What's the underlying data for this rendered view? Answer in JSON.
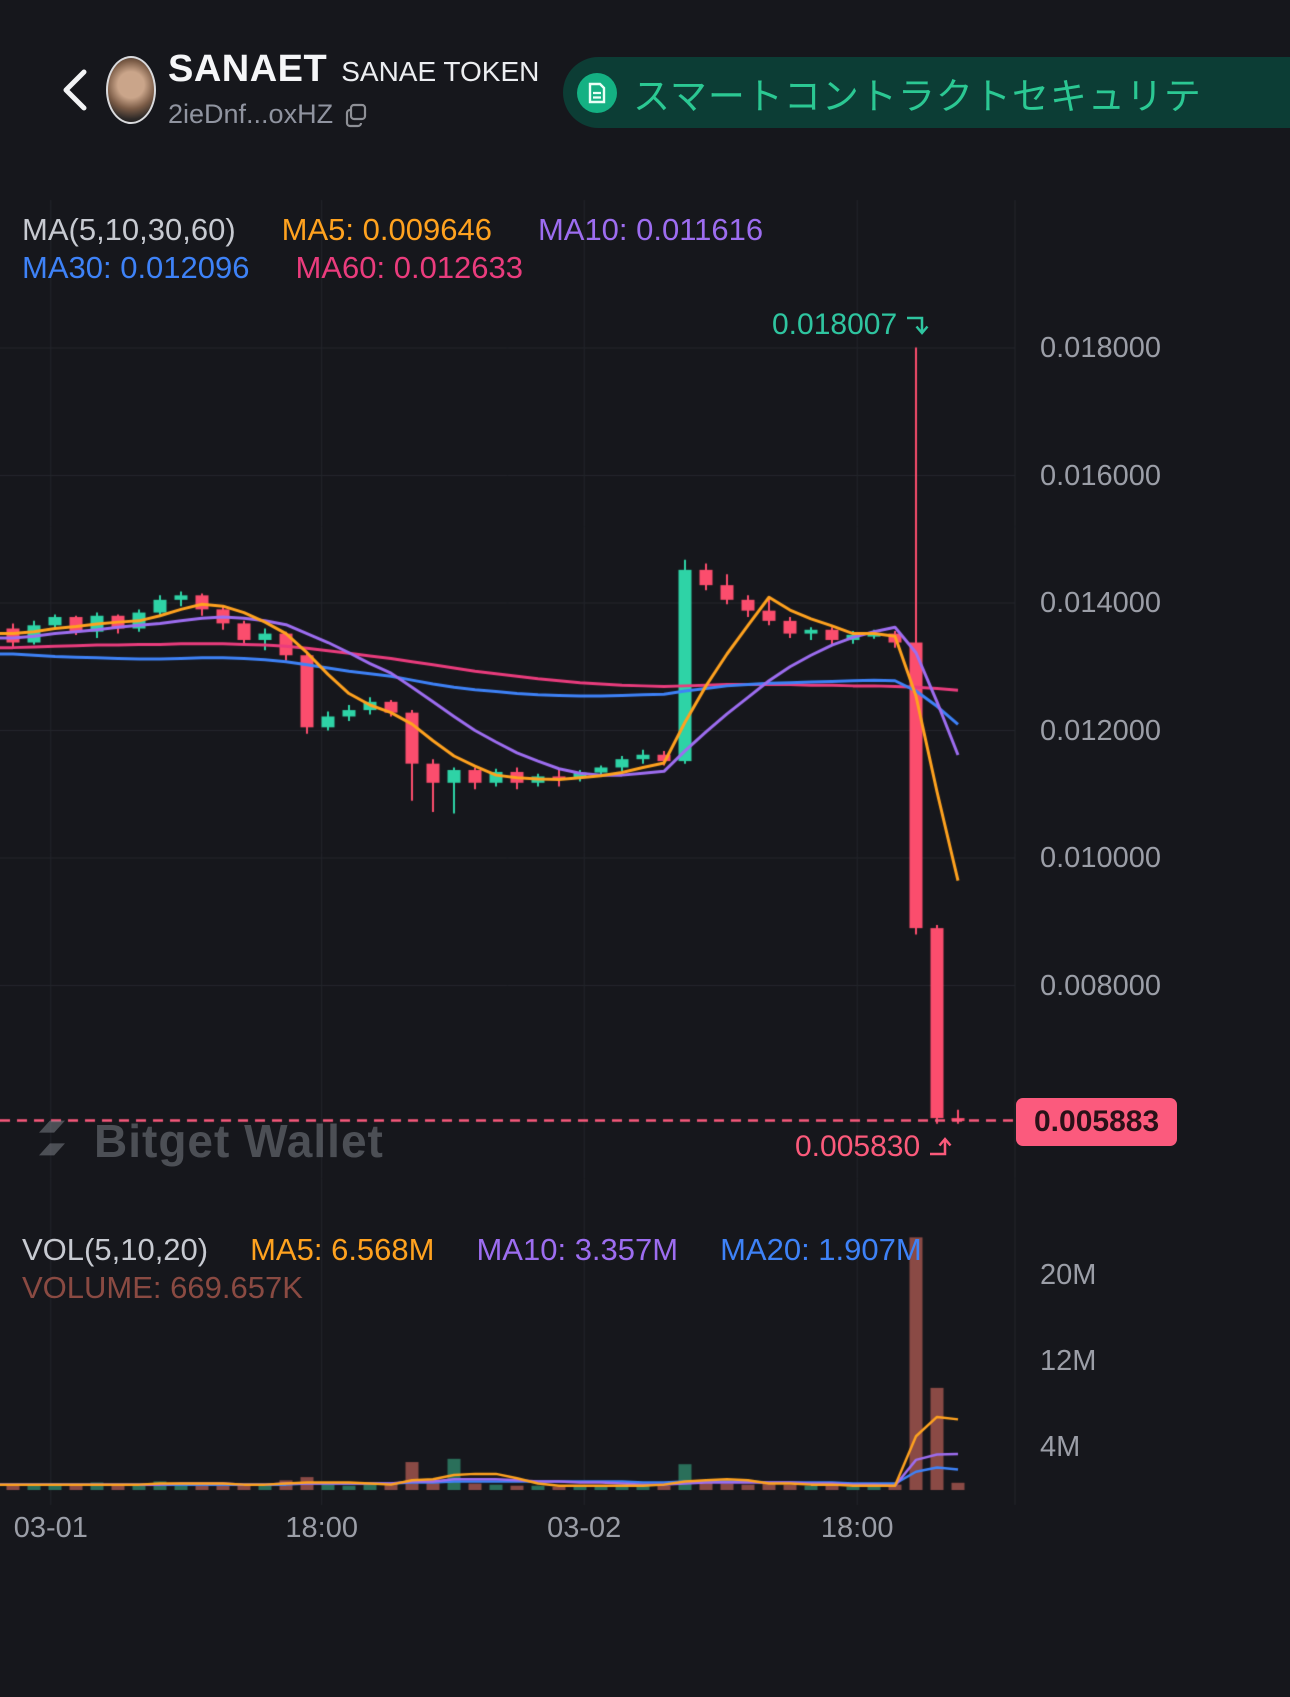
{
  "header": {
    "token_symbol": "SANAET",
    "token_name": "SANAE TOKEN",
    "token_address": "2ieDnf...oxHZ",
    "banner_text": "スマートコントラクトセキュリテ"
  },
  "watermark": "Bitget Wallet",
  "colors": {
    "background": "#16171c",
    "grid": "#24262c",
    "axis_text": "#9b9ea7",
    "up": "#2ed3a6",
    "down": "#fb4d6d",
    "vol_up": "#2a6f5a",
    "vol_down": "#8a4a45",
    "ma5": "#ffa21f",
    "ma10": "#9d6df0",
    "ma30": "#3e82f7",
    "ma60": "#ea3c7d",
    "legend_text": "#c7cad1",
    "volume_text": "#8a4a42",
    "banner_bg": "#0c3d35",
    "banner_text": "#2bc893",
    "banner_icon": "#14b183",
    "annotation_high": "#2fc5a0",
    "annotation_low": "#fb5a7b",
    "badge_bg": "#fb5a7d",
    "badge_text": "#2a1118",
    "watermark": "#7b7e86"
  },
  "indicators": {
    "price": {
      "title": "MA(5,10,30,60)",
      "ma5": "MA5: 0.009646",
      "ma10": "MA10: 0.011616",
      "ma30": "MA30: 0.012096",
      "ma60": "MA60: 0.012633"
    },
    "volume": {
      "title": "VOL(5,10,20)",
      "ma5": "MA5: 6.568M",
      "ma10": "MA10: 3.357M",
      "ma20": "MA20: 1.907M",
      "current": "VOLUME: 669.657K"
    }
  },
  "annotations": {
    "high": {
      "label": "0.018007",
      "value": 0.018007
    },
    "low": {
      "label": "0.005830",
      "value": 0.00583
    },
    "current": {
      "label": "0.005883",
      "value": 0.005883
    }
  },
  "chart_data": {
    "type": "candlestick",
    "title": "SANAET / SANAE TOKEN price chart with volume pane",
    "price_axis": {
      "ticks": [
        {
          "label": "0.018000",
          "value": 0.018
        },
        {
          "label": "0.016000",
          "value": 0.016
        },
        {
          "label": "0.014000",
          "value": 0.014
        },
        {
          "label": "0.012000",
          "value": 0.012
        },
        {
          "label": "0.010000",
          "value": 0.01
        },
        {
          "label": "0.008000",
          "value": 0.008
        }
      ]
    },
    "volume_axis": {
      "ticks": [
        {
          "label": "20M",
          "value": 20
        },
        {
          "label": "12M",
          "value": 12
        },
        {
          "label": "4M",
          "value": 4
        }
      ]
    },
    "time_axis": [
      {
        "label": "03-01",
        "i": 1.8
      },
      {
        "label": "18:00",
        "i": 14.7
      },
      {
        "label": "03-02",
        "i": 27.2
      },
      {
        "label": "18:00",
        "i": 40.2
      }
    ],
    "candles": [
      [
        0.0136,
        0.01368,
        0.0133,
        0.01338
      ],
      [
        0.01338,
        0.01372,
        0.01335,
        0.01365
      ],
      [
        0.01365,
        0.01382,
        0.0136,
        0.01378
      ],
      [
        0.01378,
        0.0138,
        0.0135,
        0.01355
      ],
      [
        0.01355,
        0.01385,
        0.01345,
        0.0138
      ],
      [
        0.0138,
        0.01382,
        0.01352,
        0.0136
      ],
      [
        0.0136,
        0.0139,
        0.01355,
        0.01385
      ],
      [
        0.01385,
        0.01412,
        0.0138,
        0.01405
      ],
      [
        0.01405,
        0.01418,
        0.01395,
        0.01412
      ],
      [
        0.01412,
        0.01415,
        0.0138,
        0.0139
      ],
      [
        0.0139,
        0.01395,
        0.01358,
        0.01368
      ],
      [
        0.01368,
        0.01372,
        0.01335,
        0.01342
      ],
      [
        0.01342,
        0.0136,
        0.01326,
        0.01352
      ],
      [
        0.01352,
        0.01355,
        0.0131,
        0.01318
      ],
      [
        0.01318,
        0.0132,
        0.01195,
        0.01205
      ],
      [
        0.01205,
        0.0123,
        0.012,
        0.01222
      ],
      [
        0.01222,
        0.0124,
        0.01215,
        0.01232
      ],
      [
        0.01232,
        0.01252,
        0.01225,
        0.01245
      ],
      [
        0.01245,
        0.01248,
        0.01222,
        0.01228
      ],
      [
        0.01228,
        0.01232,
        0.0109,
        0.01148
      ],
      [
        0.01148,
        0.01155,
        0.01072,
        0.01118
      ],
      [
        0.01118,
        0.01142,
        0.0107,
        0.01138
      ],
      [
        0.01138,
        0.01142,
        0.01108,
        0.01118
      ],
      [
        0.01118,
        0.0114,
        0.01112,
        0.01135
      ],
      [
        0.01135,
        0.01142,
        0.01108,
        0.01118
      ],
      [
        0.01118,
        0.01132,
        0.01112,
        0.01128
      ],
      [
        0.01128,
        0.0114,
        0.01112,
        0.01126
      ],
      [
        0.01126,
        0.01138,
        0.0112,
        0.01134
      ],
      [
        0.01134,
        0.01145,
        0.01128,
        0.01142
      ],
      [
        0.01142,
        0.0116,
        0.01136,
        0.01155
      ],
      [
        0.01155,
        0.0117,
        0.01148,
        0.01162
      ],
      [
        0.01162,
        0.01168,
        0.01145,
        0.01152
      ],
      [
        0.01152,
        0.01468,
        0.01148,
        0.01452
      ],
      [
        0.01452,
        0.01462,
        0.0142,
        0.01428
      ],
      [
        0.01428,
        0.01445,
        0.01398,
        0.01405
      ],
      [
        0.01405,
        0.01412,
        0.01378,
        0.01388
      ],
      [
        0.01388,
        0.01408,
        0.01365,
        0.01372
      ],
      [
        0.01372,
        0.01378,
        0.01345,
        0.01352
      ],
      [
        0.01352,
        0.01362,
        0.01342,
        0.01358
      ],
      [
        0.01358,
        0.01362,
        0.01335,
        0.01342
      ],
      [
        0.01342,
        0.01356,
        0.01336,
        0.0135
      ],
      [
        0.0135,
        0.01358,
        0.01344,
        0.01352
      ],
      [
        0.01352,
        0.01356,
        0.0133,
        0.01338
      ],
      [
        0.01338,
        0.018007,
        0.0088,
        0.0089
      ],
      [
        0.0089,
        0.00895,
        0.00583,
        0.00592
      ],
      [
        0.00592,
        0.00605,
        0.00583,
        0.005883
      ]
    ],
    "volumes_m": [
      0.4,
      0.5,
      0.6,
      0.4,
      0.7,
      0.4,
      0.5,
      0.8,
      0.6,
      0.5,
      0.6,
      0.5,
      0.4,
      0.9,
      1.2,
      0.5,
      0.4,
      0.5,
      0.6,
      2.6,
      1.0,
      2.9,
      0.6,
      0.5,
      0.4,
      0.4,
      0.3,
      0.4,
      0.4,
      0.5,
      0.6,
      0.4,
      2.4,
      0.8,
      0.6,
      0.5,
      0.6,
      0.5,
      0.4,
      0.4,
      0.3,
      0.4,
      0.5,
      23.5,
      9.5,
      0.67
    ],
    "ma_lines": {
      "ma5": [
        0.01352,
        0.01355,
        0.0136,
        0.01363,
        0.01367,
        0.0137,
        0.01372,
        0.0138,
        0.0139,
        0.01398,
        0.01395,
        0.01385,
        0.0137,
        0.01352,
        0.01322,
        0.01288,
        0.01258,
        0.0124,
        0.01228,
        0.0121,
        0.01184,
        0.0116,
        0.01144,
        0.0113,
        0.01126,
        0.01124,
        0.01123,
        0.01126,
        0.01129,
        0.01134,
        0.01142,
        0.01149,
        0.01213,
        0.0127,
        0.0132,
        0.01365,
        0.01409,
        0.01389,
        0.01375,
        0.01364,
        0.01352,
        0.01352,
        0.01348,
        0.01254,
        0.01104,
        0.009646
      ],
      "ma10": [
        0.01345,
        0.01348,
        0.01352,
        0.01355,
        0.01358,
        0.01362,
        0.01365,
        0.01368,
        0.01372,
        0.01376,
        0.01378,
        0.01376,
        0.01372,
        0.01366,
        0.01352,
        0.01338,
        0.01322,
        0.01305,
        0.0129,
        0.01268,
        0.01245,
        0.01222,
        0.012,
        0.01182,
        0.01165,
        0.01152,
        0.0114,
        0.01133,
        0.0113,
        0.0113,
        0.01133,
        0.01136,
        0.01168,
        0.01198,
        0.01226,
        0.01252,
        0.01278,
        0.013,
        0.01318,
        0.01334,
        0.01346,
        0.01355,
        0.01362,
        0.01322,
        0.01245,
        0.011616
      ],
      "ma30": [
        0.0132,
        0.01318,
        0.01316,
        0.01315,
        0.01314,
        0.01313,
        0.01312,
        0.01312,
        0.01313,
        0.01314,
        0.01314,
        0.01313,
        0.01311,
        0.01308,
        0.01303,
        0.01298,
        0.01293,
        0.01289,
        0.01285,
        0.01279,
        0.01273,
        0.01268,
        0.01264,
        0.01261,
        0.01258,
        0.01256,
        0.01255,
        0.01254,
        0.01254,
        0.01255,
        0.01256,
        0.01257,
        0.01262,
        0.01266,
        0.0127,
        0.01272,
        0.01274,
        0.01275,
        0.01276,
        0.01277,
        0.01278,
        0.01279,
        0.01278,
        0.01262,
        0.01238,
        0.012096
      ],
      "ma60": [
        0.0133,
        0.01331,
        0.01332,
        0.01333,
        0.01334,
        0.01334,
        0.01335,
        0.01335,
        0.01336,
        0.01336,
        0.01336,
        0.01335,
        0.01334,
        0.01332,
        0.01329,
        0.01325,
        0.01321,
        0.01317,
        0.01313,
        0.01308,
        0.01303,
        0.01298,
        0.01293,
        0.01289,
        0.01285,
        0.01281,
        0.01278,
        0.01275,
        0.01273,
        0.01271,
        0.0127,
        0.01269,
        0.0127,
        0.01271,
        0.01272,
        0.01272,
        0.01272,
        0.01272,
        0.01271,
        0.01271,
        0.0127,
        0.0127,
        0.01269,
        0.01268,
        0.01266,
        0.012633
      ]
    },
    "vol_ma_lines": {
      "ma5": [
        0.5,
        0.5,
        0.5,
        0.5,
        0.5,
        0.5,
        0.5,
        0.6,
        0.6,
        0.6,
        0.6,
        0.5,
        0.5,
        0.6,
        0.7,
        0.7,
        0.7,
        0.6,
        0.5,
        0.9,
        1.0,
        1.4,
        1.5,
        1.5,
        1.1,
        0.6,
        0.4,
        0.4,
        0.4,
        0.4,
        0.4,
        0.5,
        0.8,
        0.9,
        1.0,
        0.9,
        0.6,
        0.6,
        0.5,
        0.5,
        0.4,
        0.4,
        0.4,
        5.0,
        6.8,
        6.57
      ],
      "ma10": [
        0.5,
        0.5,
        0.5,
        0.5,
        0.5,
        0.5,
        0.5,
        0.5,
        0.6,
        0.6,
        0.6,
        0.5,
        0.5,
        0.6,
        0.6,
        0.6,
        0.6,
        0.6,
        0.6,
        0.8,
        0.8,
        1.0,
        1.0,
        1.0,
        0.9,
        0.8,
        0.8,
        0.7,
        0.7,
        0.6,
        0.5,
        0.5,
        0.6,
        0.7,
        0.7,
        0.7,
        0.7,
        0.7,
        0.6,
        0.6,
        0.5,
        0.5,
        0.4,
        2.8,
        3.3,
        3.357
      ],
      "ma20": [
        0.5,
        0.5,
        0.5,
        0.5,
        0.5,
        0.5,
        0.5,
        0.5,
        0.5,
        0.5,
        0.5,
        0.5,
        0.5,
        0.5,
        0.6,
        0.6,
        0.6,
        0.6,
        0.6,
        0.7,
        0.7,
        0.8,
        0.8,
        0.8,
        0.8,
        0.8,
        0.8,
        0.8,
        0.8,
        0.8,
        0.7,
        0.7,
        0.8,
        0.8,
        0.8,
        0.8,
        0.7,
        0.7,
        0.7,
        0.7,
        0.6,
        0.6,
        0.6,
        1.7,
        2.1,
        1.907
      ]
    }
  }
}
